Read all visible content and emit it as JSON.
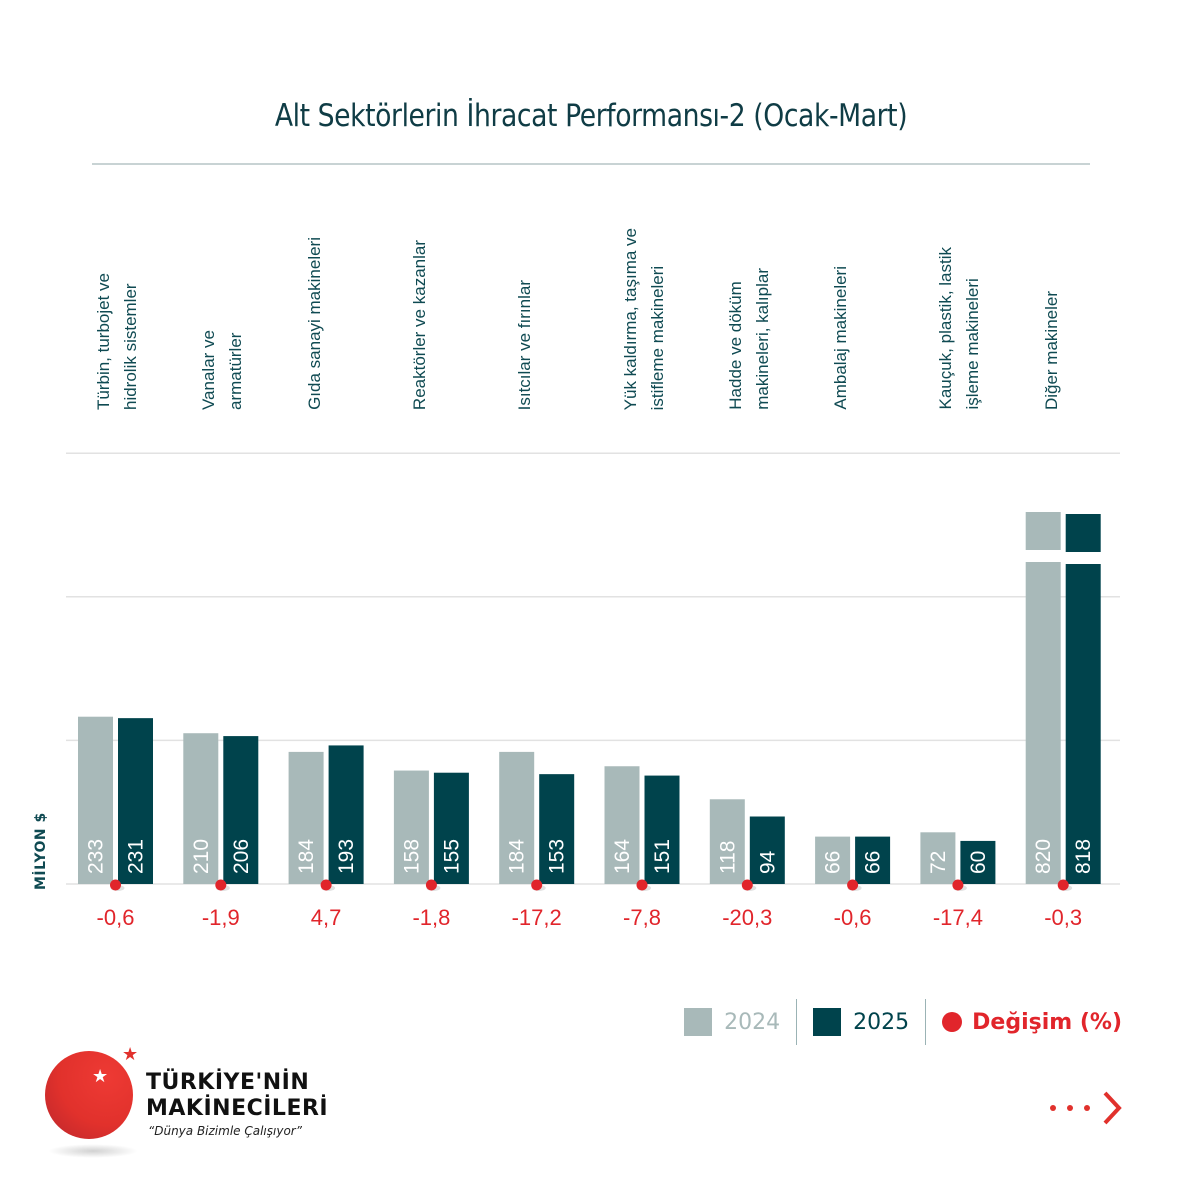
{
  "title": "Alt Sektörlerin İhracat Performansı-2 (Ocak-Mart)",
  "colors": {
    "y2024": "#a8b9b9",
    "y2025": "#00434c",
    "change": "#e1252b",
    "text_dark": "#0f4a52",
    "grid": "#e2e2e2"
  },
  "chart_data": {
    "type": "bar",
    "title": "Alt Sektörlerin İhracat Performansı-2 (Ocak-Mart)",
    "xlabel": "",
    "ylabel": "MİLYON $",
    "ylim": [
      0,
      600
    ],
    "grid": true,
    "gridlines": [
      0,
      200,
      400,
      600
    ],
    "axis_break": true,
    "legend_position": "bottom-right",
    "categories": [
      "Türbin, turbojet ve\nhidrolik sistemler",
      "Vanalar ve\narmatürler",
      "Gıda sanayi makineleri",
      "Reaktörler ve kazanlar",
      "Isıtcılar ve fırınlar",
      "Yük kaldırma, taşıma ve\nistifleme makineleri",
      "Hadde ve döküm\nmakineleri, kalıplar",
      "Ambalaj makineleri",
      "Kauçuk, plastik, lastik\nişleme makineleri",
      "Diğer makineler"
    ],
    "series": [
      {
        "name": "2024",
        "values": [
          233,
          210,
          184,
          158,
          184,
          164,
          118,
          66,
          72,
          820
        ]
      },
      {
        "name": "2025",
        "values": [
          231,
          206,
          193,
          155,
          153,
          151,
          94,
          66,
          60,
          818
        ]
      }
    ],
    "change_pct": [
      "-0,6",
      "-1,9",
      "4,7",
      "-1,8",
      "-17,2",
      "-7,8",
      "-20,3",
      "-0,6",
      "-17,4",
      "-0,3"
    ],
    "change_label": "Değişim (%)"
  },
  "legend": {
    "items": [
      {
        "label": "2024"
      },
      {
        "label": "2025"
      },
      {
        "label": "Değişim (%)"
      }
    ]
  },
  "logo": {
    "line1": "TÜRKİYE'NİN",
    "line2": "MAKİNECİLERİ",
    "slogan": "“Dünya Bizimle Çalışıyor”"
  },
  "icons": {
    "next": "next-arrow-icon",
    "star": "★"
  }
}
